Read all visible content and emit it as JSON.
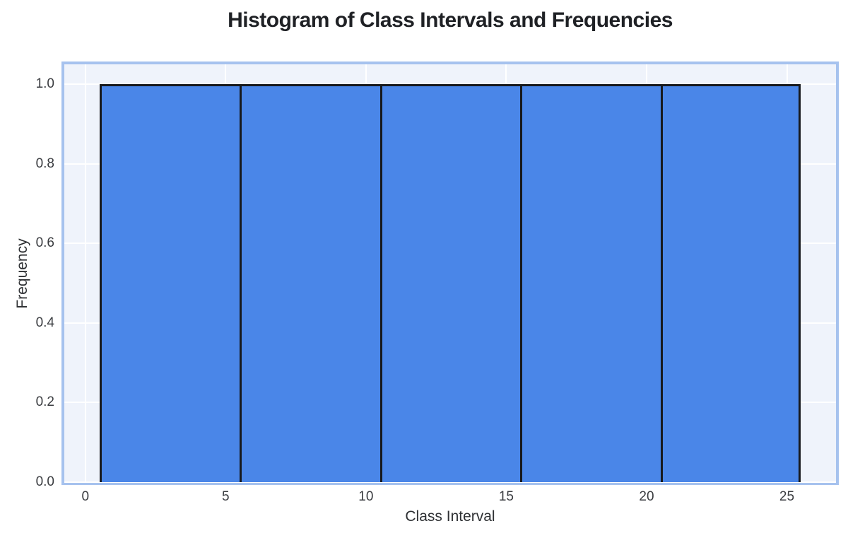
{
  "chart_data": {
    "type": "bar",
    "chart_kind": "histogram",
    "title": "Histogram of Class Intervals and Frequencies",
    "xlabel": "Class Interval",
    "ylabel": "Frequency",
    "bin_edges": [
      0.5,
      5.5,
      10.5,
      15.5,
      20.5,
      25.5
    ],
    "frequencies": [
      1.0,
      1.0,
      1.0,
      1.0,
      1.0
    ],
    "xlim": [
      -0.75,
      26.75
    ],
    "ylim": [
      0,
      1.05
    ],
    "x_tick_values": [
      0,
      5,
      10,
      15,
      20,
      25
    ],
    "x_tick_labels": [
      "0",
      "5",
      "10",
      "15",
      "20",
      "25"
    ],
    "y_tick_values": [
      0.0,
      0.2,
      0.4,
      0.6,
      0.8,
      1.0
    ],
    "y_tick_labels": [
      "0.0",
      "0.2",
      "0.4",
      "0.6",
      "0.8",
      "1.0"
    ],
    "grid": true,
    "legend": false,
    "colors": {
      "bar_fill": "#4a86e8",
      "bar_edge": "#17191d",
      "plot_background": "#eff3fb",
      "plot_border": "#a6c2ee",
      "gridline": "#ffffff",
      "title_text": "#1f2125",
      "tick_text": "#3a3c40"
    }
  }
}
